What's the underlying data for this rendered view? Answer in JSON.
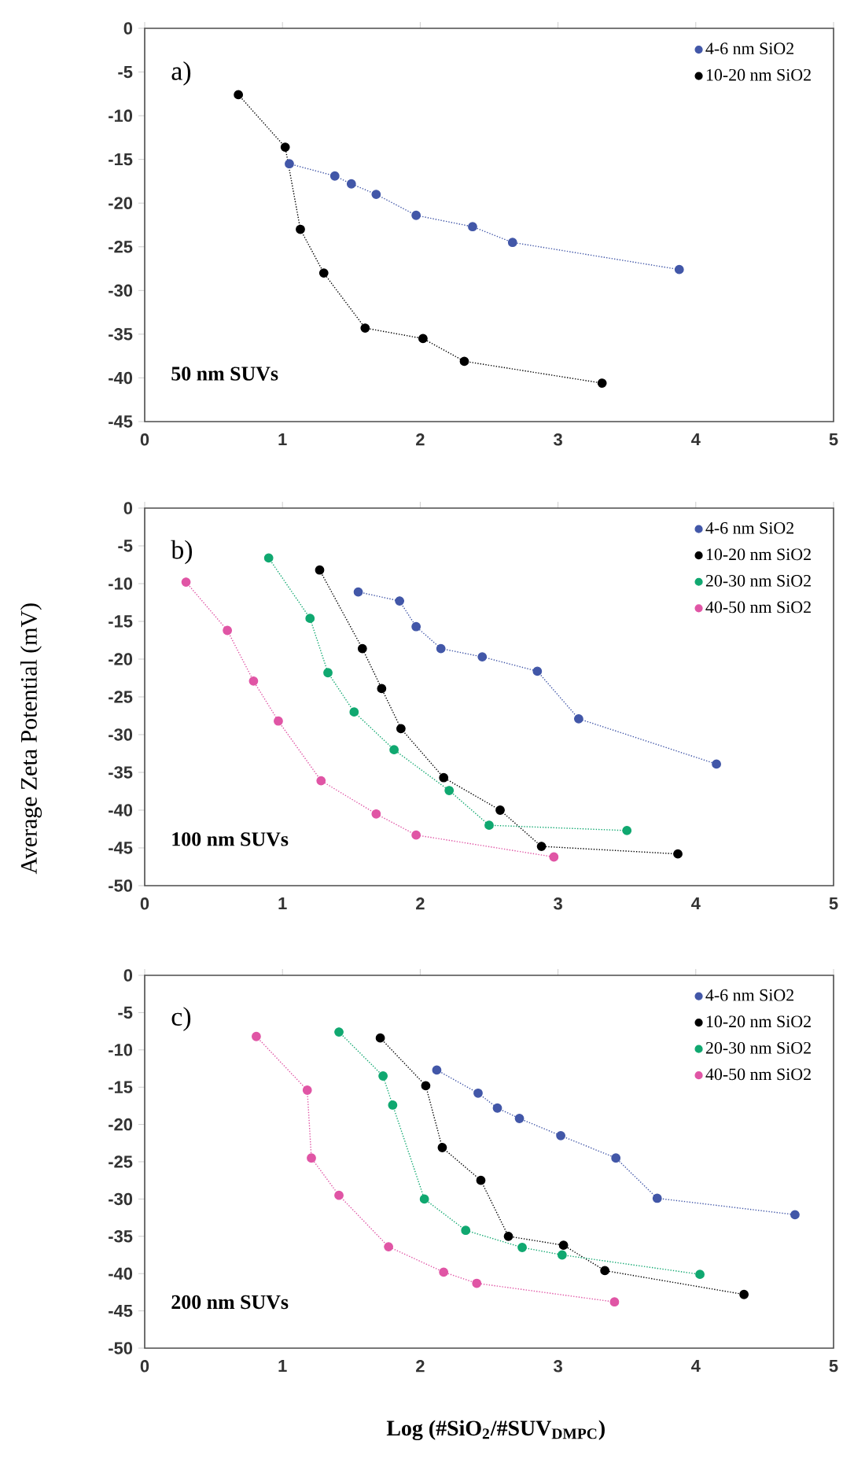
{
  "chart_data": [
    {
      "type": "line",
      "line_style": "dotted",
      "marker": "circle",
      "legend": "top right",
      "grid": false,
      "xlim": [
        0,
        5
      ],
      "xticks": [
        0,
        1,
        2,
        3,
        4,
        5
      ],
      "ylim": [
        -45,
        0
      ],
      "yticks": [
        -45,
        -40,
        -35,
        -30,
        -25,
        -20,
        -15,
        -10,
        -5,
        0
      ],
      "annotations": [
        "a)",
        "50 nm SUVs"
      ],
      "series": [
        {
          "name": "4-6 nm SiO2",
          "color": "#4257a8",
          "x": [
            1.05,
            1.38,
            1.5,
            1.68,
            1.97,
            2.38,
            2.67,
            3.88
          ],
          "values": [
            -15.5,
            -16.9,
            -17.8,
            -19,
            -21.4,
            -22.7,
            -24.5,
            -27.6
          ]
        },
        {
          "name": "10-20 nm SiO2",
          "color": "#000000",
          "x": [
            0.68,
            1.02,
            1.13,
            1.3,
            1.6,
            2.02,
            2.32,
            3.32
          ],
          "values": [
            -7.6,
            -13.6,
            -23,
            -28,
            -34.3,
            -35.5,
            -38.1,
            -40.6
          ]
        }
      ]
    },
    {
      "type": "line",
      "line_style": "dotted",
      "marker": "circle",
      "legend": "top right",
      "grid": false,
      "xlim": [
        0,
        5
      ],
      "xticks": [
        0,
        1,
        2,
        3,
        4,
        5
      ],
      "ylim": [
        -50,
        0
      ],
      "yticks": [
        -50,
        -45,
        -40,
        -35,
        -30,
        -25,
        -20,
        -15,
        -10,
        -5,
        0
      ],
      "ylabel": "Average Zeta Potential (mV)",
      "annotations": [
        "b)",
        "100 nm SUVs"
      ],
      "series": [
        {
          "name": "4-6 nm SiO2",
          "color": "#4257a8",
          "x": [
            1.55,
            1.85,
            1.97,
            2.15,
            2.45,
            2.85,
            3.15,
            4.15
          ],
          "values": [
            -11.1,
            -12.3,
            -15.7,
            -18.6,
            -19.7,
            -21.6,
            -27.9,
            -33.9
          ]
        },
        {
          "name": "10-20 nm SiO2",
          "color": "#000000",
          "x": [
            1.27,
            1.58,
            1.72,
            1.86,
            2.17,
            2.58,
            2.88,
            3.87
          ],
          "values": [
            -8.2,
            -18.6,
            -23.9,
            -29.2,
            -35.7,
            -40,
            -44.8,
            -45.8
          ]
        },
        {
          "name": "20-30 nm SiO2",
          "color": "#10a870",
          "x": [
            0.9,
            1.2,
            1.33,
            1.52,
            1.81,
            2.21,
            2.5,
            3.5
          ],
          "values": [
            -6.6,
            -14.6,
            -21.8,
            -27,
            -32,
            -37.4,
            -42,
            -42.7
          ]
        },
        {
          "name": "40-50 nm SiO2",
          "color": "#e055a5",
          "x": [
            0.3,
            0.6,
            0.79,
            0.97,
            1.28,
            1.68,
            1.97,
            2.97
          ],
          "values": [
            -9.8,
            -16.2,
            -22.9,
            -28.2,
            -36.1,
            -40.5,
            -43.3,
            -46.2
          ]
        }
      ]
    },
    {
      "type": "line",
      "line_style": "dotted",
      "marker": "circle",
      "legend": "top right",
      "grid": false,
      "xlim": [
        0,
        5
      ],
      "xticks": [
        0,
        1,
        2,
        3,
        4,
        5
      ],
      "ylim": [
        -50,
        0
      ],
      "yticks": [
        -50,
        -45,
        -40,
        -35,
        -30,
        -25,
        -20,
        -15,
        -10,
        -5,
        0
      ],
      "xlabel": "Log (#SiO$_{2}$/#SUV$_{DMPC}$)",
      "annotations": [
        "c)",
        "200 nm SUVs"
      ],
      "series": [
        {
          "name": "4-6 nm SiO2",
          "color": "#4257a8",
          "x": [
            2.12,
            2.42,
            2.56,
            2.72,
            3.02,
            3.42,
            3.72,
            4.72
          ],
          "values": [
            -12.7,
            -15.8,
            -17.8,
            -19.2,
            -21.5,
            -24.5,
            -29.9,
            -32.1
          ]
        },
        {
          "name": "10-20 nm SiO2",
          "color": "#000000",
          "x": [
            1.71,
            2.04,
            2.16,
            2.44,
            2.64,
            3.04,
            3.34,
            4.35
          ],
          "values": [
            -8.4,
            -14.8,
            -23.1,
            -27.5,
            -35,
            -36.2,
            -39.6,
            -42.8
          ]
        },
        {
          "name": "20-30 nm SiO2",
          "color": "#10a870",
          "x": [
            1.41,
            1.73,
            1.8,
            2.03,
            2.33,
            2.74,
            3.03,
            4.03
          ],
          "values": [
            -7.6,
            -13.5,
            -17.4,
            -30,
            -34.2,
            -36.5,
            -37.5,
            -40.1
          ]
        },
        {
          "name": "40-50 nm SiO2",
          "color": "#e055a5",
          "x": [
            0.81,
            1.18,
            1.21,
            1.41,
            1.77,
            2.17,
            2.41,
            3.41
          ],
          "values": [
            -8.2,
            -15.4,
            -24.5,
            -29.5,
            -36.4,
            -39.8,
            -41.3,
            -43.8
          ]
        }
      ]
    }
  ]
}
